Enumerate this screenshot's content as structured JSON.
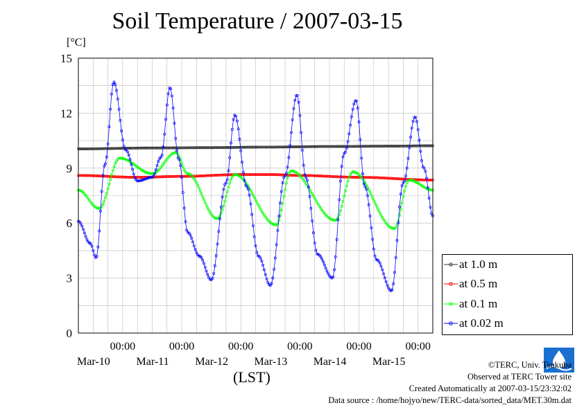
{
  "title": "Soil Temperature / 2007-03-15",
  "unit_label": "[°C]",
  "credits": {
    "copyright": "©TERC, Univ. Tsukuba",
    "observed": "Observed at TERC Tower site",
    "created": "Created Automatically at 2007-03-15/23:32:02",
    "source": "Data source : /home/hojyo/new/TERC-data/sorted_data/MET.30m.dat"
  },
  "logo_icon": "terc-logo-icon",
  "chart_data": {
    "type": "line",
    "title": "Soil Temperature / 2007-03-15",
    "xlabel": "(LST)",
    "ylabel": "[°C]",
    "ylim": [
      0,
      15
    ],
    "xlim": [
      -0.75,
      5.25
    ],
    "y_ticks": [
      "0",
      "3",
      "6",
      "9",
      "12",
      "15"
    ],
    "x_ticks": [
      {
        "time": "00:00",
        "date": "Mar-10"
      },
      {
        "time": "00:00",
        "date": "Mar-11"
      },
      {
        "time": "00:00",
        "date": "Mar-12"
      },
      {
        "time": "00:00",
        "date": "Mar-13"
      },
      {
        "time": "00:00",
        "date": "Mar-14"
      },
      {
        "time": "00:00",
        "date": "Mar-15"
      }
    ],
    "grid": true,
    "legend_position": "right",
    "series": [
      {
        "name": "at 1.0 m",
        "color": "#333333",
        "x": [
          -0.75,
          0.5,
          1.5,
          2.5,
          3.5,
          4.5,
          5.25
        ],
        "y": [
          10.05,
          10.1,
          10.12,
          10.15,
          10.18,
          10.2,
          10.22
        ]
      },
      {
        "name": "at 0.5 m",
        "color": "#ff0000",
        "x": [
          -0.75,
          0.25,
          1.0,
          2.0,
          2.5,
          3.0,
          4.0,
          5.25
        ],
        "y": [
          8.6,
          8.5,
          8.55,
          8.65,
          8.65,
          8.6,
          8.5,
          8.35
        ]
      },
      {
        "name": "at 0.1 m",
        "color": "#00ff00",
        "x": [
          -0.75,
          -0.4,
          -0.05,
          0.5,
          0.9,
          1.1,
          1.6,
          1.9,
          2.6,
          2.85,
          3.6,
          3.9,
          4.6,
          4.85,
          5.25
        ],
        "y": [
          7.8,
          6.8,
          9.55,
          8.7,
          9.85,
          8.7,
          6.25,
          8.65,
          5.9,
          8.85,
          6.15,
          8.8,
          5.7,
          8.35,
          7.8
        ]
      },
      {
        "name": "at 0.02 m",
        "color": "#0000ff",
        "x": [
          -0.75,
          -0.55,
          -0.45,
          -0.3,
          -0.15,
          0.05,
          0.25,
          0.5,
          0.65,
          0.8,
          0.95,
          1.1,
          1.3,
          1.5,
          1.75,
          1.9,
          2.1,
          2.3,
          2.5,
          2.75,
          2.95,
          3.1,
          3.3,
          3.55,
          3.75,
          3.95,
          4.1,
          4.3,
          4.55,
          4.75,
          4.95,
          5.1,
          5.25
        ],
        "y": [
          6.1,
          4.9,
          4.1,
          9.2,
          13.7,
          10.0,
          8.3,
          8.5,
          9.6,
          13.4,
          9.5,
          5.5,
          4.2,
          2.9,
          8.2,
          11.9,
          8.0,
          4.2,
          2.6,
          8.6,
          13.0,
          8.5,
          4.3,
          3.0,
          9.8,
          12.7,
          8.0,
          4.0,
          2.3,
          8.2,
          11.8,
          9.0,
          6.4
        ]
      }
    ]
  }
}
